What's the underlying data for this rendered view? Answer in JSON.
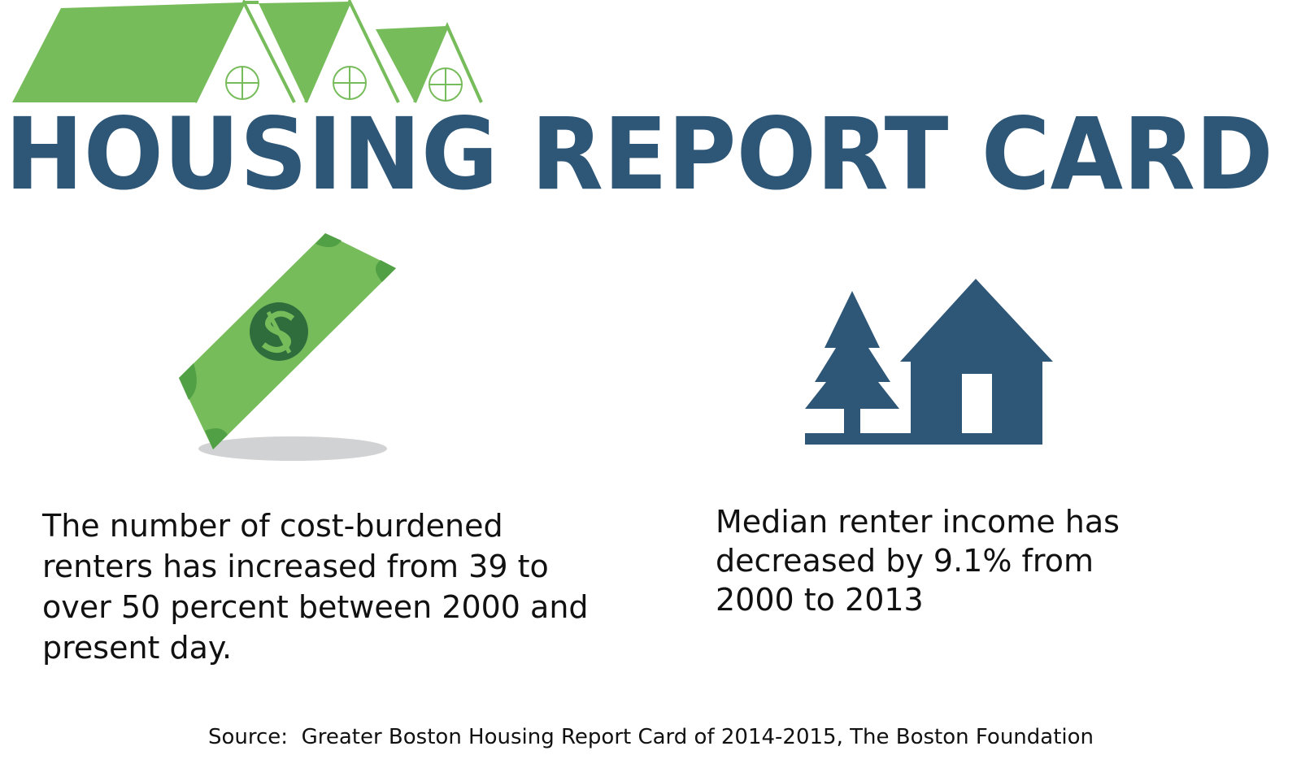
{
  "header": {
    "title": "HOUSING REPORT CARD"
  },
  "stats": [
    {
      "text": "The number of cost-burdened renters has increased from 39 to over 50 percent between 2000 and present day."
    },
    {
      "text": "Median renter income has decreased by 9.1% from 2000 to 2013"
    }
  ],
  "source": "Source:  Greater Boston Housing Report Card of 2014-2015, The Boston Foundation"
}
